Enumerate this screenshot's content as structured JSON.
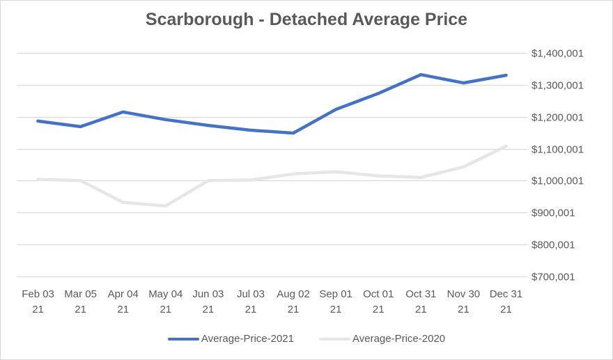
{
  "chart_data": {
    "type": "line",
    "title": "Scarborough - Detached Average Price",
    "xlabel": "",
    "ylabel": "",
    "categories": [
      [
        "Feb 03",
        "21"
      ],
      [
        "Mar 05",
        "21"
      ],
      [
        "Apr 04",
        "21"
      ],
      [
        "May 04",
        "21"
      ],
      [
        "Jun 03",
        "21"
      ],
      [
        "Jul 03",
        "21"
      ],
      [
        "Aug 02",
        "21"
      ],
      [
        "Sep 01",
        "21"
      ],
      [
        "Oct 01",
        "21"
      ],
      [
        "Oct 31",
        "21"
      ],
      [
        "Nov 30",
        "21"
      ],
      [
        "Dec 31",
        "21"
      ]
    ],
    "y_ticks": [
      {
        "value": 1400001,
        "label": "$1,400,001"
      },
      {
        "value": 1300001,
        "label": "$1,300,001"
      },
      {
        "value": 1200001,
        "label": "$1,200,001"
      },
      {
        "value": 1100001,
        "label": "$1,100,001"
      },
      {
        "value": 1000001,
        "label": "$1,000,001"
      },
      {
        "value": 900001,
        "label": "$900,001"
      },
      {
        "value": 800001,
        "label": "$800,001"
      },
      {
        "value": 700001,
        "label": "$700,001"
      }
    ],
    "ylim": [
      700001,
      1400001
    ],
    "y_axis_position": "right",
    "grid": true,
    "legend_position": "bottom",
    "series": [
      {
        "name": "Average-Price-2021",
        "color": "#4472c4",
        "values": [
          1186500,
          1169000,
          1215000,
          1191000,
          1173000,
          1158000,
          1149000,
          1223000,
          1273000,
          1332000,
          1306000,
          1330000
        ]
      },
      {
        "name": "Average-Price-2020",
        "color": "#e7e6e6",
        "values": [
          1004000,
          1000000,
          932000,
          921000,
          1000000,
          1002000,
          1021000,
          1028000,
          1015000,
          1010000,
          1043000,
          1108000
        ]
      }
    ]
  }
}
